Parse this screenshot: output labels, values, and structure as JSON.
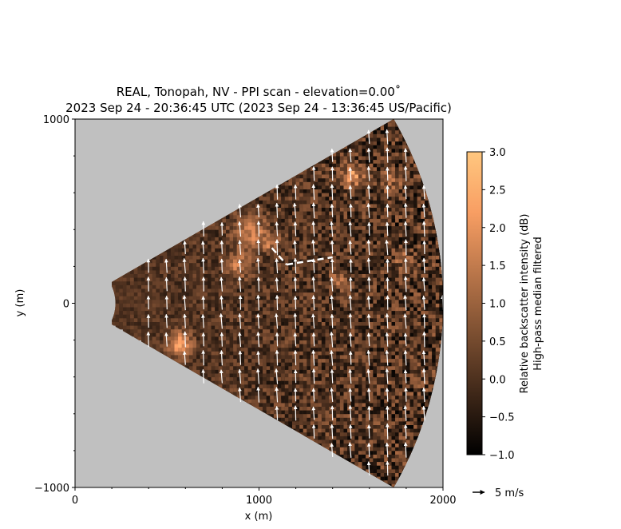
{
  "chart_data": {
    "type": "heatmap",
    "title_line1": "REAL, Tonopah, NV - PPI scan - elevation=0.00˚",
    "title_line2": "2023 Sep 24 - 20:36:45 UTC (2023 Sep 24 - 13:36:45 US/Pacific)",
    "xlabel": "x (m)",
    "ylabel": "y (m)",
    "xlim": [
      0,
      2000
    ],
    "ylim": [
      -1000,
      1000
    ],
    "xticks": [
      "0",
      "1000",
      "2000"
    ],
    "yticks": [
      "−1000",
      "0",
      "1000"
    ],
    "sector": {
      "min_range": 220,
      "max_range": 2000,
      "half_angle_deg": 30
    },
    "background_color": "#c0c0c0",
    "colorbar": {
      "label_line1": "Relative backscatter intensity (dB)",
      "label_line2": "High-pass median filtered",
      "range": [
        -1.0,
        3.0
      ],
      "ticks": [
        "3.0",
        "2.5",
        "2.0",
        "1.5",
        "1.0",
        "0.5",
        "0.0",
        "−0.5",
        "−1.0"
      ],
      "colormap": "copper"
    },
    "quiver_key": {
      "label": "5 m/s",
      "speed": 5
    },
    "wind": {
      "direction": "northward, slight westward component",
      "speed_ms": 5
    },
    "annotations": [
      {
        "type": "dashed-line",
        "color": "#ffffff"
      }
    ]
  }
}
